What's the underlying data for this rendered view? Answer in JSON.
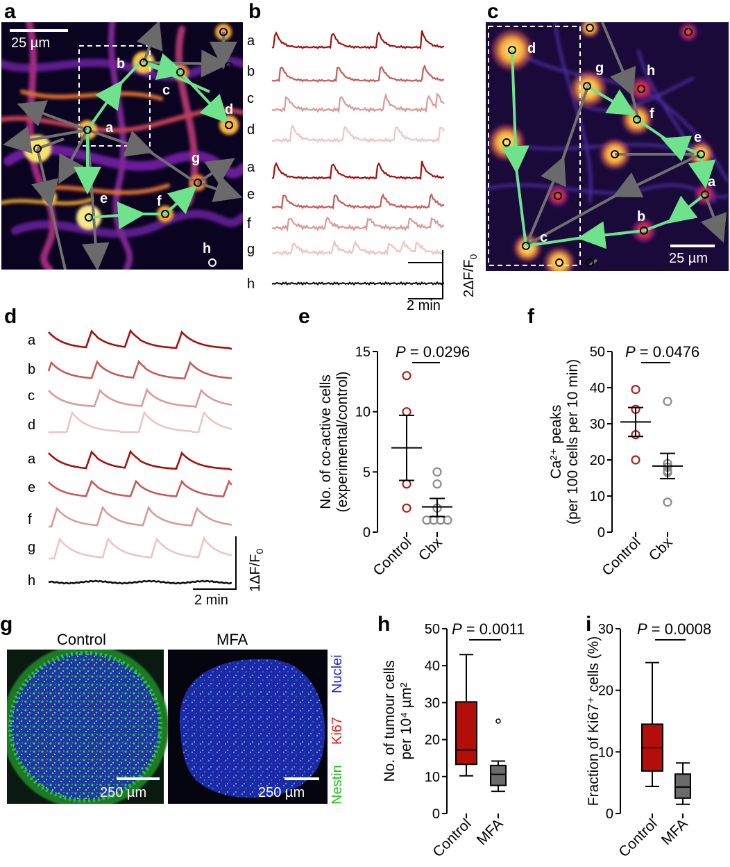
{
  "panel_labels": {
    "a": "a",
    "b": "b",
    "c": "c",
    "d": "d",
    "e": "e",
    "f": "f",
    "g": "g",
    "h": "h",
    "i": "i"
  },
  "panel_a": {
    "scale_text": "25 µm",
    "cell_labels": [
      "a",
      "b",
      "c",
      "d",
      "e",
      "f",
      "g",
      "h"
    ]
  },
  "panel_b": {
    "trace_labels": [
      "a",
      "b",
      "c",
      "d",
      "a",
      "e",
      "f",
      "g",
      "h"
    ],
    "scale_y": "2ΔF/F",
    "scale_y_sub": "0",
    "scale_x": "2 min"
  },
  "panel_c": {
    "scale_text": "25 µm",
    "cell_labels": [
      "a",
      "b",
      "c",
      "d",
      "e",
      "f",
      "g",
      "h"
    ]
  },
  "panel_d": {
    "trace_labels": [
      "a",
      "b",
      "c",
      "d",
      "a",
      "e",
      "f",
      "g",
      "h"
    ],
    "scale_y": "1ΔF/F",
    "scale_y_sub": "0",
    "scale_x": "2 min"
  },
  "panel_g": {
    "titles": [
      "Control",
      "MFA"
    ],
    "scale_text": "250 µm",
    "legend": [
      "Nestin",
      "Ki67",
      "Nuclei"
    ],
    "colors": {
      "nestin": "#21c21c",
      "ki67": "#e01b1b",
      "nuclei": "#2424e6"
    }
  },
  "chart_data": [
    {
      "id": "e",
      "type": "scatter",
      "ylabel_line1": "No. of co-active cells",
      "ylabel_line2": "(experimental/control)",
      "categories": [
        "Control",
        "Cbx"
      ],
      "ylim": [
        0,
        15
      ],
      "yticks": [
        "0",
        "5",
        "10",
        "15"
      ],
      "pvalue": "P = 0.0296",
      "series": [
        {
          "name": "Control",
          "color": "#b0201c",
          "values": [
            13,
            10,
            4,
            2
          ],
          "mean": 7.0,
          "sem_low": 4.3,
          "sem_high": 9.7
        },
        {
          "name": "Cbx",
          "color": "#8a8a8a",
          "values": [
            5,
            4,
            2,
            1,
            1,
            1,
            1
          ],
          "mean": 2.1,
          "sem_low": 1.3,
          "sem_high": 2.8
        }
      ]
    },
    {
      "id": "f",
      "type": "scatter",
      "ylabel_line1": "Ca²⁺ peaks",
      "ylabel_line2": "(per 100 cells per 10 min)",
      "categories": [
        "Control",
        "Cbx"
      ],
      "ylim": [
        0,
        50
      ],
      "yticks": [
        "0",
        "10",
        "20",
        "30",
        "40",
        "50"
      ],
      "pvalue": "P = 0.0476",
      "series": [
        {
          "name": "Control",
          "color": "#b0201c",
          "values": [
            39.5,
            34,
            27,
            20
          ],
          "mean": 30.5,
          "sem_low": 26.5,
          "sem_high": 34.5
        },
        {
          "name": "Cbx",
          "color": "#8a8a8a",
          "values": [
            36.2,
            19,
            18,
            17,
            16.5,
            8.3
          ],
          "mean": 18.3,
          "sem_low": 14.8,
          "sem_high": 21.8
        }
      ]
    },
    {
      "id": "h",
      "type": "box",
      "ylabel_line1": "No. of tumour cells",
      "ylabel_line2": "per 10⁴ µm²",
      "categories": [
        "Control",
        "MFA"
      ],
      "ylim": [
        0,
        50
      ],
      "yticks": [
        "0",
        "10",
        "20",
        "30",
        "40",
        "50"
      ],
      "pvalue": "P = 0.0011",
      "boxes": [
        {
          "name": "Control",
          "color": "#b20f0a",
          "whisker_low": 10.2,
          "q1": 13.3,
          "median": 17.2,
          "q3": 30.2,
          "whisker_high": 43,
          "outliers": []
        },
        {
          "name": "MFA",
          "color": "#6b6b6b",
          "whisker_low": 6,
          "q1": 7.6,
          "median": 10.6,
          "q3": 13,
          "whisker_high": 14.2,
          "outliers": [
            25
          ]
        }
      ]
    },
    {
      "id": "i",
      "type": "box",
      "ylabel_line1": "Fraction of Ki67⁺ cells (%)",
      "ylabel_line2": "",
      "categories": [
        "Control",
        "MFA"
      ],
      "ylim": [
        0,
        30
      ],
      "yticks": [
        "0",
        "10",
        "20",
        "30"
      ],
      "pvalue": "P = 0.0008",
      "boxes": [
        {
          "name": "Control",
          "color": "#b20f0a",
          "whisker_low": 4.4,
          "q1": 6.9,
          "median": 10.7,
          "q3": 14.5,
          "whisker_high": 24.5,
          "outliers": []
        },
        {
          "name": "MFA",
          "color": "#6b6b6b",
          "whisker_low": 1.5,
          "q1": 2.5,
          "median": 4.3,
          "q3": 6.4,
          "whisker_high": 8.2,
          "outliers": []
        }
      ]
    }
  ]
}
